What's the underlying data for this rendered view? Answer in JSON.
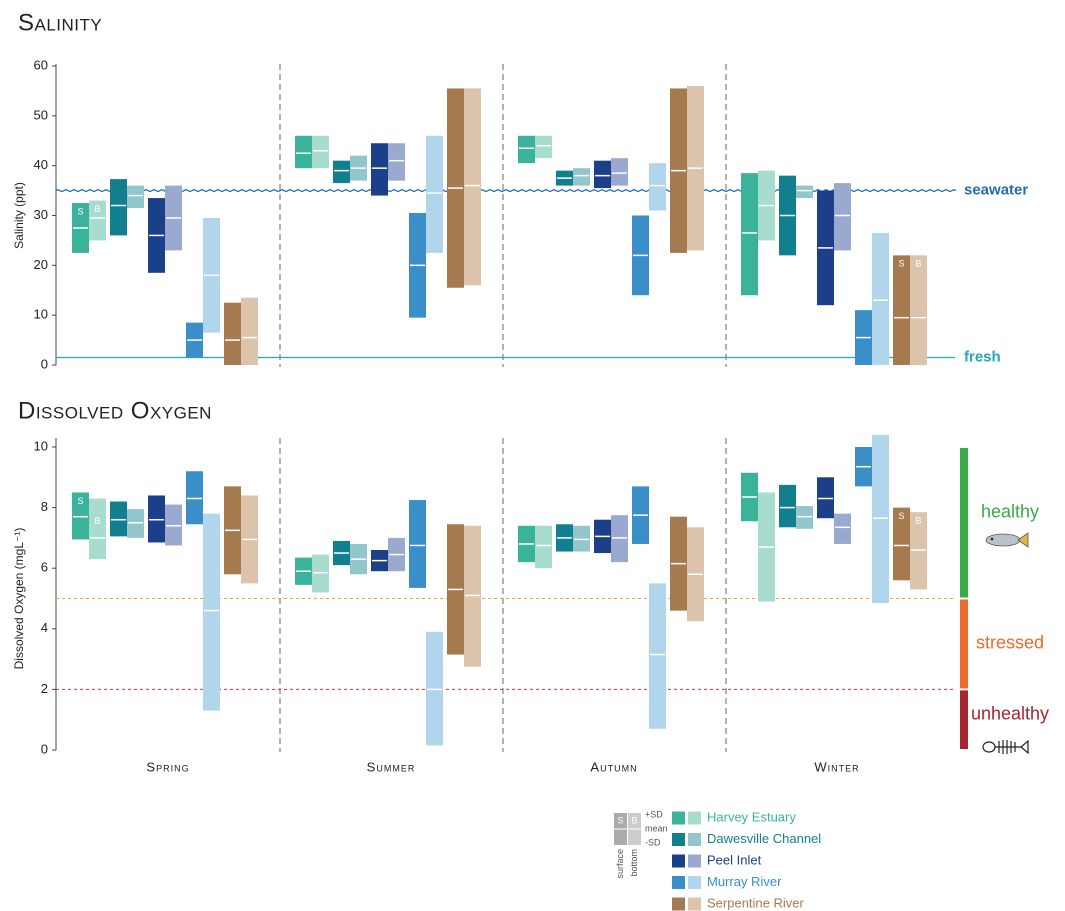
{
  "sites": [
    {
      "name": "Harvey Estuary",
      "colors": [
        "#3bb39b",
        "#a8dccf"
      ]
    },
    {
      "name": "Dawesville Channel",
      "colors": [
        "#127f8e",
        "#93c5cc"
      ]
    },
    {
      "name": "Peel Inlet",
      "colors": [
        "#1c3f8a",
        "#9aa9cf"
      ]
    },
    {
      "name": "Murray River",
      "colors": [
        "#3a8fc9",
        "#b1d6ec"
      ]
    },
    {
      "name": "Serpentine River",
      "colors": [
        "#a67a4f",
        "#dcc3ab"
      ]
    }
  ],
  "key": {
    "bar_labels": [
      "S",
      "B"
    ],
    "stats": [
      "+SD",
      "mean",
      "-SD"
    ],
    "depths": [
      "surface",
      "bottom"
    ]
  },
  "chart_data": [
    {
      "type": "range-bar",
      "title": "Salinity",
      "y_label": "Salinity (ppt)",
      "ylim": [
        0,
        60
      ],
      "yticks": [
        0,
        10,
        20,
        30,
        40,
        50,
        60
      ],
      "bar_labels": [
        "S",
        "B"
      ],
      "reference_lines": [
        {
          "label": "seawater",
          "value": 35,
          "color": "#1f6fb2",
          "style": "wavy"
        },
        {
          "label": "fresh",
          "value": 1.5,
          "color": "#22a9b5",
          "style": "solid"
        }
      ],
      "series": [
        {
          "surface": {
            "high": [
              32.5,
              46,
              46,
              38.5
            ],
            "mean": [
              27.5,
              42.5,
              43.5,
              26.5
            ],
            "low": [
              22.5,
              39.5,
              40.5,
              14
            ]
          },
          "bottom": {
            "high": [
              33,
              46,
              46,
              39
            ],
            "mean": [
              29.5,
              43,
              44,
              32
            ],
            "low": [
              25,
              39.5,
              41.5,
              25
            ]
          }
        },
        {
          "surface": {
            "high": [
              37.3,
              41,
              39,
              38
            ],
            "mean": [
              32,
              39,
              37.5,
              30
            ],
            "low": [
              26,
              36.5,
              36,
              22
            ]
          },
          "bottom": {
            "high": [
              36,
              42,
              39.5,
              36
            ],
            "mean": [
              34,
              39.5,
              38,
              35
            ],
            "low": [
              31.5,
              37,
              36,
              33.5
            ]
          }
        },
        {
          "surface": {
            "high": [
              33.5,
              44.5,
              41,
              35
            ],
            "mean": [
              26,
              39.5,
              38,
              23.5
            ],
            "low": [
              18.5,
              34,
              35.5,
              12
            ]
          },
          "bottom": {
            "high": [
              36,
              44.5,
              41.5,
              36.5
            ],
            "mean": [
              29.5,
              41,
              38.5,
              30
            ],
            "low": [
              23,
              37,
              36,
              23
            ]
          }
        },
        {
          "surface": {
            "high": [
              8.5,
              30.5,
              30,
              11
            ],
            "mean": [
              5,
              20,
              22,
              5.5
            ],
            "low": [
              1.5,
              9.5,
              14,
              0
            ]
          },
          "bottom": {
            "high": [
              29.5,
              46,
              40.5,
              26.5
            ],
            "mean": [
              18,
              34.5,
              36,
              13
            ],
            "low": [
              6.5,
              22.5,
              31,
              0
            ]
          }
        },
        {
          "surface": {
            "high": [
              12.5,
              55.5,
              55.5,
              22
            ],
            "mean": [
              5,
              35.5,
              39,
              9.5
            ],
            "low": [
              0,
              15.5,
              22.5,
              0
            ]
          },
          "bottom": {
            "high": [
              13.5,
              55.5,
              56,
              22
            ],
            "mean": [
              5.5,
              36,
              39.5,
              9.5
            ],
            "low": [
              0,
              16,
              23,
              0
            ]
          }
        }
      ]
    },
    {
      "type": "range-bar",
      "title": "Dissolved Oxygen",
      "y_label": "Dissolved Oxygen (mgL⁻¹)",
      "ylim": [
        0,
        10
      ],
      "yticks": [
        0,
        2,
        4,
        6,
        8,
        10
      ],
      "bar_labels": [
        "S",
        "B"
      ],
      "categories": [
        "Spring",
        "Summer",
        "Autumn",
        "Winter"
      ],
      "thresholds": [
        {
          "value": 5,
          "color": "#e8a33c"
        },
        {
          "value": 2,
          "color": "#c0393b"
        }
      ],
      "zones": [
        {
          "label": "healthy",
          "from": 5,
          "to": 10,
          "color": "#3aaa49"
        },
        {
          "label": "stressed",
          "from": 2,
          "to": 5,
          "color": "#ec6b2d"
        },
        {
          "label": "unhealthy",
          "from": 0,
          "to": 2,
          "color": "#a8242f"
        }
      ],
      "series": [
        {
          "surface": {
            "high": [
              8.5,
              6.35,
              7.4,
              9.15
            ],
            "mean": [
              7.7,
              5.9,
              6.8,
              8.35
            ],
            "low": [
              6.95,
              5.45,
              6.2,
              7.55
            ]
          },
          "bottom": {
            "high": [
              8.3,
              6.45,
              7.4,
              8.5
            ],
            "mean": [
              7.0,
              5.85,
              6.75,
              6.7
            ],
            "low": [
              6.3,
              5.2,
              6.0,
              4.9
            ]
          }
        },
        {
          "surface": {
            "high": [
              8.2,
              6.9,
              7.45,
              8.75
            ],
            "mean": [
              7.6,
              6.5,
              7.0,
              8.0
            ],
            "low": [
              7.05,
              6.1,
              6.55,
              7.35
            ]
          },
          "bottom": {
            "high": [
              7.95,
              6.8,
              7.4,
              8.05
            ],
            "mean": [
              7.5,
              6.3,
              6.95,
              7.7
            ],
            "low": [
              7.0,
              5.8,
              6.55,
              7.3
            ]
          }
        },
        {
          "surface": {
            "high": [
              8.4,
              6.6,
              7.6,
              9.0
            ],
            "mean": [
              7.6,
              6.25,
              7.05,
              8.3
            ],
            "low": [
              6.85,
              5.9,
              6.5,
              7.65
            ]
          },
          "bottom": {
            "high": [
              8.1,
              7.0,
              7.75,
              7.8
            ],
            "mean": [
              7.4,
              6.45,
              7.0,
              7.35
            ],
            "low": [
              6.75,
              5.9,
              6.2,
              6.8
            ]
          }
        },
        {
          "surface": {
            "high": [
              9.2,
              8.25,
              8.7,
              10
            ],
            "mean": [
              8.3,
              6.75,
              7.75,
              9.35
            ],
            "low": [
              7.45,
              5.35,
              6.8,
              8.7
            ]
          },
          "bottom": {
            "high": [
              7.8,
              3.9,
              5.5,
              10.4
            ],
            "mean": [
              4.6,
              2.0,
              3.15,
              7.65
            ],
            "low": [
              1.3,
              0.15,
              0.7,
              4.85
            ]
          }
        },
        {
          "surface": {
            "high": [
              8.7,
              7.45,
              7.7,
              8.0
            ],
            "mean": [
              7.25,
              5.3,
              6.15,
              6.75
            ],
            "low": [
              5.8,
              3.15,
              4.6,
              5.6
            ]
          },
          "bottom": {
            "high": [
              8.4,
              7.4,
              7.35,
              7.85
            ],
            "mean": [
              6.95,
              5.1,
              5.8,
              6.6
            ],
            "low": [
              5.5,
              2.75,
              4.25,
              5.3
            ]
          }
        }
      ]
    }
  ]
}
